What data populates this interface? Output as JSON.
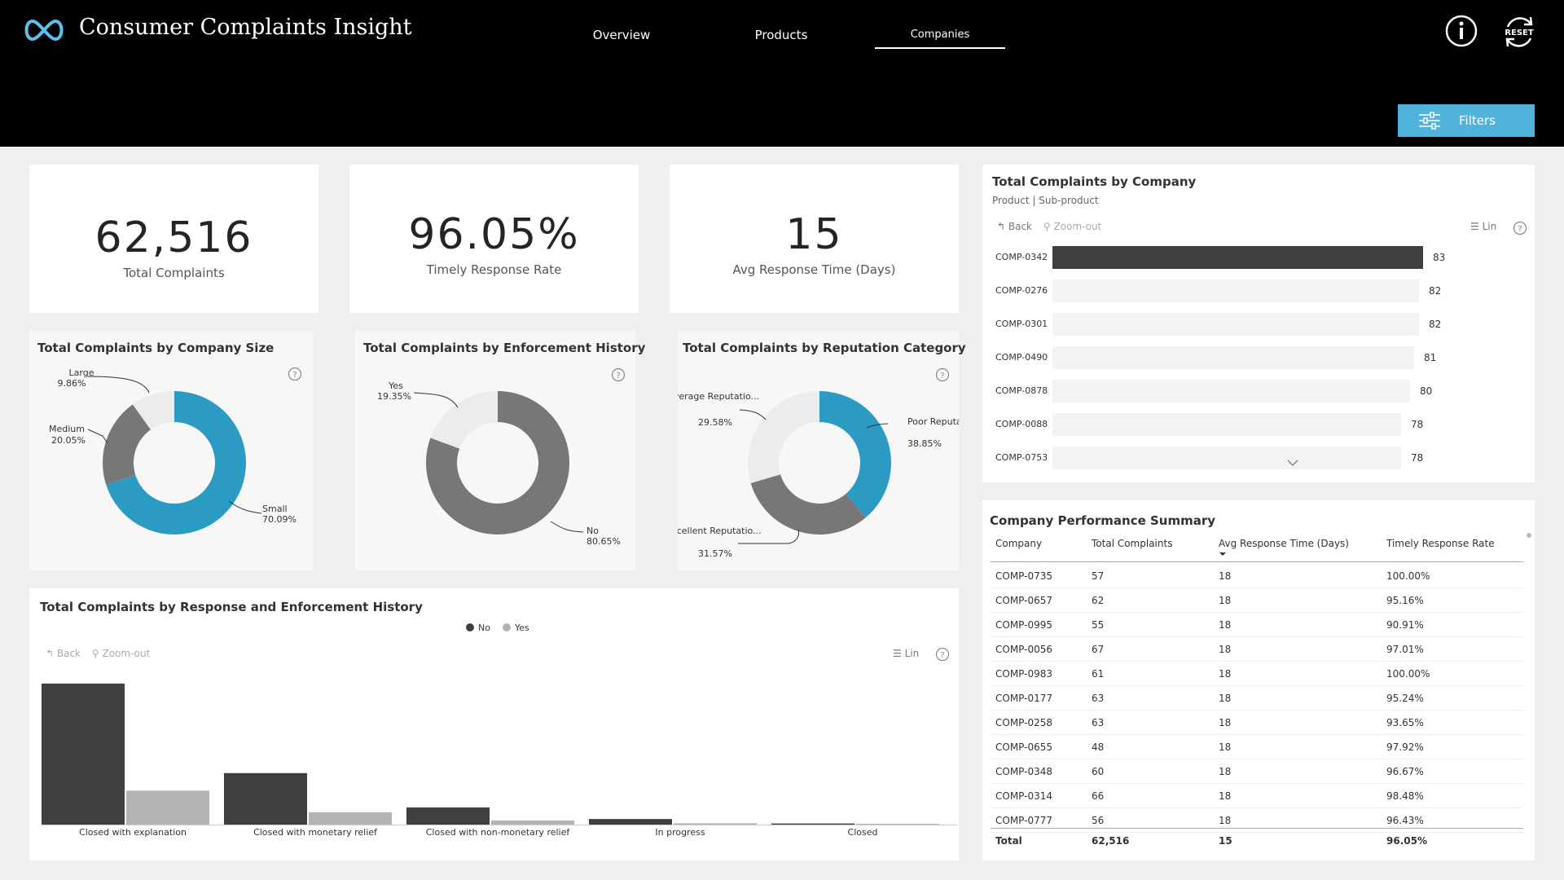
{
  "header": {
    "title": "Consumer Complaints Insight",
    "nav": [
      "Overview",
      "Products",
      "Companies"
    ],
    "active_tab": "Companies",
    "reset_label": "RESET",
    "filters_label": "Filters",
    "accent_color": "#4fb3de"
  },
  "kpis": [
    {
      "value": "62,516",
      "label": "Total Complaints"
    },
    {
      "value": "96.05%",
      "label": "Timely Response Rate"
    },
    {
      "value": "15",
      "label": "Avg Response Time (Days)"
    }
  ],
  "donuts": {
    "company_size": {
      "title": "Total Complaints by Company Size",
      "slices": [
        {
          "name": "Small",
          "pct": "70.09%",
          "value": 70.09,
          "color": "#2b9bc4"
        },
        {
          "name": "Medium",
          "pct": "20.05%",
          "value": 20.05,
          "color": "#777777"
        },
        {
          "name": "Large",
          "pct": "9.86%",
          "value": 9.86,
          "color": "#ececec"
        }
      ]
    },
    "enforcement": {
      "title": "Total Complaints by Enforcement History",
      "slices": [
        {
          "name": "No",
          "pct": "80.65%",
          "value": 80.65,
          "color": "#777777"
        },
        {
          "name": "Yes",
          "pct": "19.35%",
          "value": 19.35,
          "color": "#ececec"
        }
      ]
    },
    "reputation": {
      "title": "Total Complaints by Reputation Category",
      "slices": [
        {
          "name": "Poor Reputatio...",
          "pct": "38.85%",
          "value": 38.85,
          "color": "#2b9bc4"
        },
        {
          "name": "Excellent Reputatio...",
          "pct": "31.57%",
          "value": 31.57,
          "color": "#777777"
        },
        {
          "name": "Average Reputatio...",
          "pct": "29.58%",
          "value": 29.58,
          "color": "#ececec"
        }
      ]
    }
  },
  "company_chart": {
    "title": "Total Complaints by Company",
    "subtitle": "Product | Sub-product",
    "back_label": "Back",
    "zoomout_label": "Zoom-out",
    "lin_label": "Lin",
    "bars": [
      {
        "company": "COMP-0342",
        "value": 83,
        "highlight": true
      },
      {
        "company": "COMP-0276",
        "value": 82
      },
      {
        "company": "COMP-0301",
        "value": 82
      },
      {
        "company": "COMP-0490",
        "value": 81
      },
      {
        "company": "COMP-0878",
        "value": 80
      },
      {
        "company": "COMP-0088",
        "value": 78
      },
      {
        "company": "COMP-0753",
        "value": 78
      }
    ]
  },
  "summary_table": {
    "title": "Company Performance Summary",
    "columns": [
      "Company",
      "Total Complaints",
      "Avg Response Time (Days)",
      "Timely Response Rate"
    ],
    "rows": [
      [
        "COMP-0735",
        "57",
        "18",
        "100.00%"
      ],
      [
        "COMP-0657",
        "62",
        "18",
        "95.16%"
      ],
      [
        "COMP-0995",
        "55",
        "18",
        "90.91%"
      ],
      [
        "COMP-0056",
        "67",
        "18",
        "97.01%"
      ],
      [
        "COMP-0983",
        "61",
        "18",
        "100.00%"
      ],
      [
        "COMP-0177",
        "63",
        "18",
        "95.24%"
      ],
      [
        "COMP-0258",
        "63",
        "18",
        "93.65%"
      ],
      [
        "COMP-0655",
        "48",
        "18",
        "97.92%"
      ],
      [
        "COMP-0348",
        "60",
        "18",
        "96.67%"
      ],
      [
        "COMP-0314",
        "66",
        "18",
        "98.48%"
      ],
      [
        "COMP-0777",
        "56",
        "18",
        "96.43%"
      ]
    ],
    "total": [
      "Total",
      "62,516",
      "15",
      "96.05%"
    ]
  },
  "chart_data": {
    "type": "bar",
    "title": "Total Complaints by Response and Enforcement History",
    "categories": [
      "Closed with explanation",
      "Closed with monetary relief",
      "Closed with non-monetary relief",
      "In progress",
      "Closed"
    ],
    "series": [
      {
        "name": "No",
        "values": [
          37800,
          13800,
          4600,
          1500,
          300
        ],
        "color": "#3f3f3f"
      },
      {
        "name": "Yes",
        "values": [
          9100,
          3300,
          1100,
          350,
          70
        ],
        "color": "#b3b3b3"
      }
    ],
    "ylim": [
      0,
      38000
    ],
    "legend": "top-center",
    "back_label": "Back",
    "zoomout_label": "Zoom-out",
    "lin_label": "Lin"
  }
}
